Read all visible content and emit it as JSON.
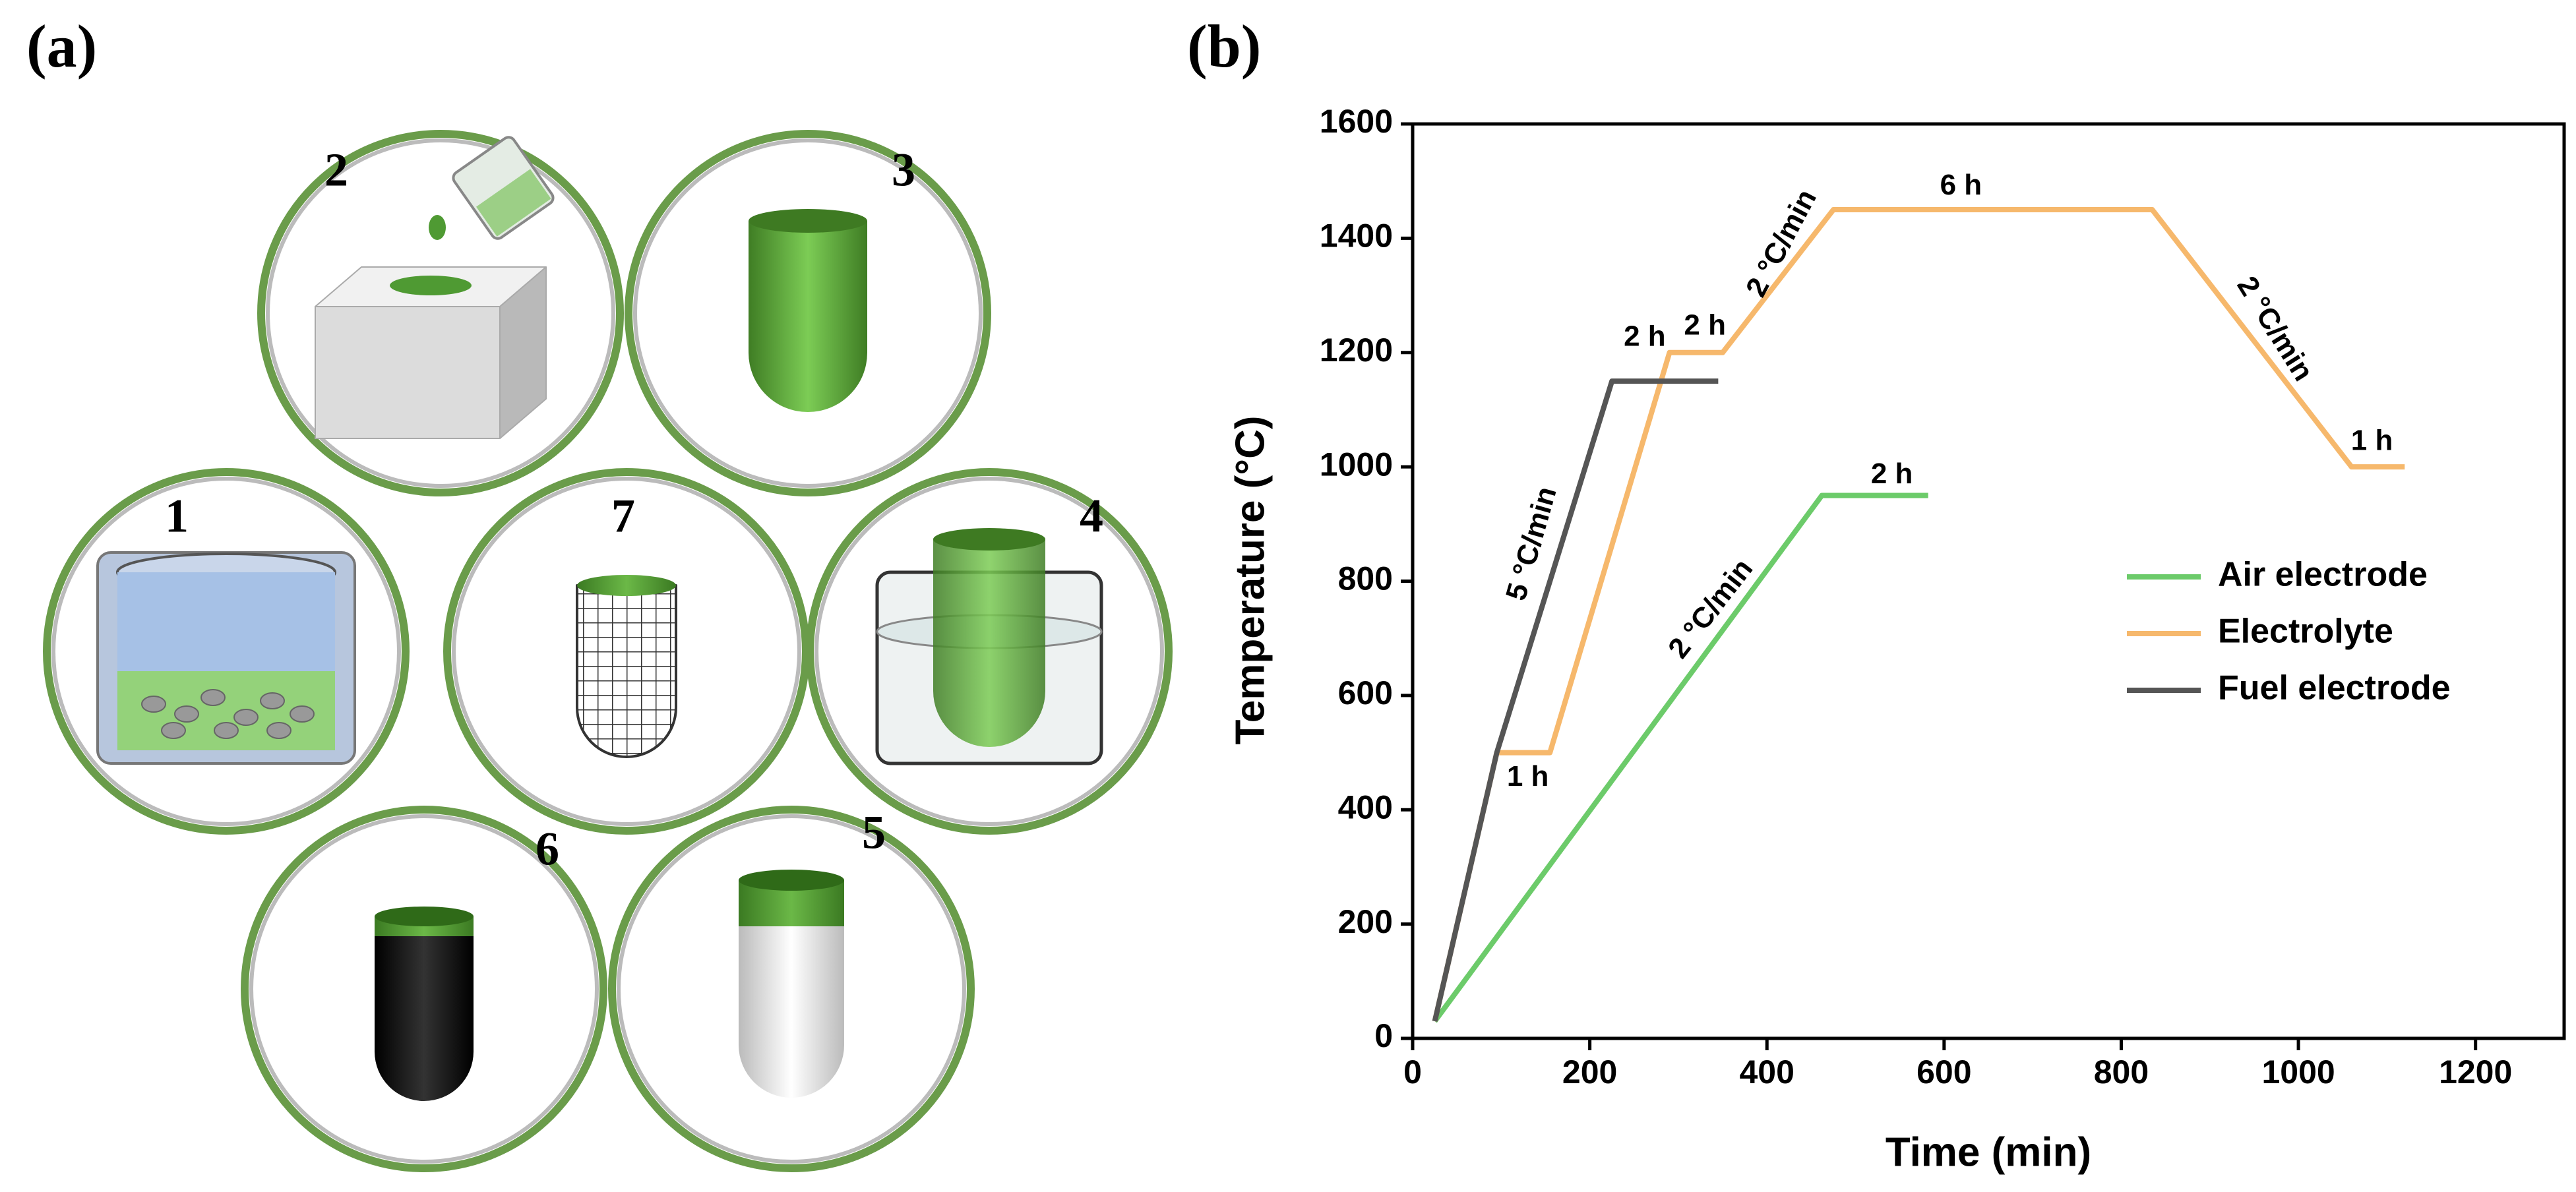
{
  "panel_labels": [
    "(a)",
    "(b)"
  ],
  "steps": [
    "1",
    "2",
    "3",
    "4",
    "5",
    "6",
    "7"
  ],
  "chart_data": {
    "type": "line",
    "x_label": "Time (min)",
    "y_label": "Temperature (°C)",
    "xlim": [
      0,
      1300
    ],
    "ylim": [
      0,
      1600
    ],
    "xticks": [
      0,
      200,
      400,
      600,
      800,
      1000,
      1200
    ],
    "yticks": [
      0,
      200,
      400,
      600,
      800,
      1000,
      1200,
      1400,
      1600
    ],
    "legend": "right",
    "series": [
      {
        "name": "Air electrode",
        "color": "#6ccb6a",
        "x": [
          25,
          462,
          582
        ],
        "values": [
          30,
          950,
          950
        ]
      },
      {
        "name": "Electrolyte",
        "color": "#f6b86c",
        "x": [
          25,
          95,
          155,
          290,
          350,
          475,
          835,
          1060,
          1120
        ],
        "values": [
          30,
          500,
          500,
          1200,
          1200,
          1450,
          1450,
          1000,
          1000
        ]
      },
      {
        "name": "Fuel electrode",
        "color": "#555555",
        "x": [
          25,
          95,
          225,
          345
        ],
        "values": [
          30,
          500,
          1150,
          1150
        ]
      }
    ],
    "annotations": [
      "1 h",
      "2 h",
      "2 h",
      "2 °C/min",
      "6 h",
      "2 °C/min",
      "1 h",
      "5 °C/min",
      "2 °C/min",
      "2 h"
    ]
  }
}
